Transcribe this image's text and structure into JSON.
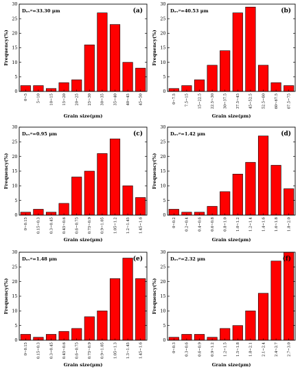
{
  "chart_data": [
    {
      "type": "bar",
      "panel_label": "(a)",
      "annotation": "Dₐᵥᵍ=33.30 μm",
      "xlabel": "Grain size(μm)",
      "ylabel": "Frequency(%)",
      "ylim": [
        0,
        30
      ],
      "yticks": [
        0,
        5,
        10,
        15,
        20,
        25,
        30
      ],
      "color": "#ff0000",
      "categories": [
        "0~5",
        "5~10",
        "10~15",
        "15~20",
        "20~25",
        "25~30",
        "30~35",
        "35~40",
        "40~45",
        "45~50"
      ],
      "values": [
        2,
        2,
        1,
        3,
        4,
        16,
        27,
        23,
        10,
        8
      ]
    },
    {
      "type": "bar",
      "panel_label": "(b)",
      "annotation": "Dₐᵥᵍ=40.53 μm",
      "xlabel": "Grain size(μm)",
      "ylabel": "Frequency(%)",
      "ylim": [
        0,
        30
      ],
      "yticks": [
        0,
        5,
        10,
        15,
        20,
        25,
        30
      ],
      "color": "#ff0000",
      "categories": [
        "0~7.5",
        "7.5~15",
        "15~22.5",
        "22.5~30",
        "30~37.5",
        "37.5~45",
        "45~52.5",
        "52.5~60",
        "60~67.5",
        "67.5~75"
      ],
      "values": [
        1,
        2,
        4,
        9,
        14,
        27,
        29,
        9,
        3,
        2
      ]
    },
    {
      "type": "bar",
      "panel_label": "(c)",
      "annotation": "Dₐᵥᵍ=0.95 μm",
      "xlabel": "Grain size(μm)",
      "ylabel": "Frequency(%)",
      "ylim": [
        0,
        30
      ],
      "yticks": [
        0,
        5,
        10,
        15,
        20,
        25,
        30
      ],
      "color": "#ff0000",
      "categories": [
        "0~0.15",
        "0.15~0.3",
        "0.3~0.45",
        "0.45~0.6",
        "0.6~0.75",
        "0.75~0.9",
        "0.9~1.05",
        "1.05~1.2",
        "1.2~1.45",
        "1.45~1.6"
      ],
      "values": [
        1,
        2,
        1,
        4,
        13,
        15,
        21,
        26,
        10,
        6
      ]
    },
    {
      "type": "bar",
      "panel_label": "(d)",
      "annotation": "Dₐᵥᵍ=1.42 μm",
      "xlabel": "Grain size(μm)",
      "ylabel": "Frequency(%)",
      "ylim": [
        0,
        30
      ],
      "yticks": [
        0,
        5,
        10,
        15,
        20,
        25,
        30
      ],
      "color": "#ff0000",
      "categories": [
        "0~0.2",
        "0.2~0.4",
        "0.4~0.6",
        "0.6~0.8",
        "0.8~1.0",
        "1.0~1.2",
        "1.2~1.4",
        "1.4~1.6",
        "1.6~1.8",
        "1.8~2.0"
      ],
      "values": [
        2,
        1,
        1,
        3,
        8,
        14,
        18,
        27,
        17,
        9
      ]
    },
    {
      "type": "bar",
      "panel_label": "(e)",
      "annotation": "Dₐᵥᵍ=1.48 μm",
      "xlabel": "Grain size(μm)",
      "ylabel": "Frequency(%)",
      "ylim": [
        0,
        30
      ],
      "yticks": [
        0,
        5,
        10,
        15,
        20,
        25,
        30
      ],
      "color": "#ff0000",
      "categories": [
        "0~0.15",
        "0.15~0.3",
        "0.3~0.45",
        "0.45~0.6",
        "0.6~0.75",
        "0.75~0.9",
        "0.9~1.05",
        "1.05~1.3",
        "1.3~1.45",
        "1.45~1.6"
      ],
      "values": [
        2,
        1,
        2,
        3,
        4,
        8,
        10,
        21,
        28,
        21
      ]
    },
    {
      "type": "bar",
      "panel_label": "(f)",
      "annotation": "Dₐᵥᵍ=2.32 μm",
      "xlabel": "Grain size(μm)",
      "ylabel": "Frequency(%)",
      "ylim": [
        0,
        30
      ],
      "yticks": [
        0,
        5,
        10,
        15,
        20,
        25,
        30
      ],
      "color": "#ff0000",
      "categories": [
        "0~0.3",
        "0.3~0.6",
        "0.6~0.9",
        "0.9~1.2",
        "1.2~1.5",
        "1.5~1.8",
        "1.8~2.1",
        "2.1~2.4",
        "2.4~2.7",
        "2.7~3.0"
      ],
      "values": [
        1,
        2,
        2,
        1,
        4,
        5,
        10,
        16,
        27,
        30
      ]
    }
  ]
}
